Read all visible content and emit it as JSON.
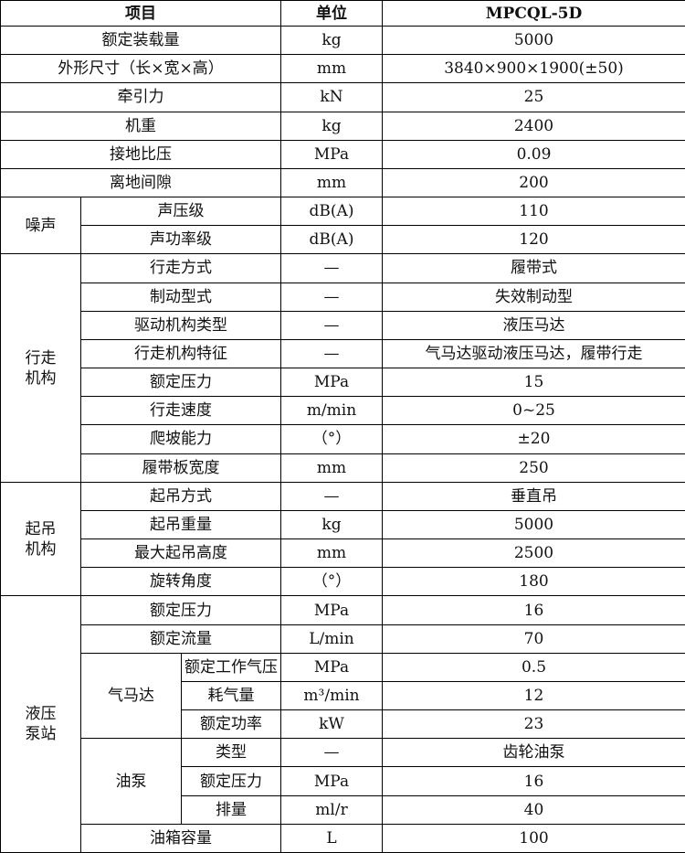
{
  "header": {
    "item": "项目",
    "unit": "单位",
    "value": "MPCQL-5D"
  },
  "rows": [
    {
      "item": "额定装载量",
      "unit": "kg",
      "value": "5000"
    },
    {
      "item": "外形尺寸（长×宽×高）",
      "unit": "mm",
      "value": "3840×900×1900(±50)"
    },
    {
      "item": "牵引力",
      "unit": "kN",
      "value": "25"
    },
    {
      "item": "机重",
      "unit": "kg",
      "value": "2400"
    },
    {
      "item": "接地比压",
      "unit": "MPa",
      "value": "0.09"
    },
    {
      "item": "离地间隙",
      "unit": "mm",
      "value": "200"
    },
    {
      "group": "噪声",
      "rows": [
        {
          "item": "声压级",
          "unit": "dB(A)",
          "value": "110"
        },
        {
          "item": "声功率级",
          "unit": "dB(A)",
          "value": "120"
        }
      ]
    },
    {
      "group": "行走机构",
      "rows": [
        {
          "item": "行走方式",
          "unit": "—",
          "value": "履带式"
        },
        {
          "item": "制动型式",
          "unit": "—",
          "value": "失效制动型"
        },
        {
          "item": "驱动机构类型",
          "unit": "—",
          "value": "液压马达"
        },
        {
          "item": "行走机构特征",
          "unit": "—",
          "value": "气马达驱动液压马达，履带行走"
        },
        {
          "item": "额定压力",
          "unit": "MPa",
          "value": "15"
        },
        {
          "item": "行走速度",
          "unit": "m/min",
          "value": "0~25"
        },
        {
          "item": "爬坡能力",
          "unit": "（°）",
          "value": "±20"
        },
        {
          "item": "履带板宽度",
          "unit": "mm",
          "value": "250"
        }
      ]
    },
    {
      "group": "起吊机构",
      "rows": [
        {
          "item": "起吊方式",
          "unit": "—",
          "value": "垂直吊"
        },
        {
          "item": "起吊重量",
          "unit": "kg",
          "value": "5000"
        },
        {
          "item": "最大起吊高度",
          "unit": "mm",
          "value": "2500"
        },
        {
          "item": "旋转角度",
          "unit": "（°）",
          "value": "180"
        }
      ]
    },
    {
      "group": "液压泵站",
      "rows": [
        {
          "item": "额定压力",
          "unit": "MPa",
          "value": "16"
        },
        {
          "item": "额定流量",
          "unit": "L/min",
          "value": "70"
        },
        {
          "group": "气马达",
          "rows": [
            {
              "item": "额定工作气压",
              "unit": "MPa",
              "value": "0.5"
            },
            {
              "item": "耗气量",
              "unit": "m³/min",
              "value": "12"
            },
            {
              "item": "额定功率",
              "unit": "kW",
              "value": "23"
            }
          ]
        },
        {
          "group": "油泵",
          "rows": [
            {
              "item": "类型",
              "unit": "—",
              "value": "齿轮油泵"
            },
            {
              "item": "额定压力",
              "unit": "MPa",
              "value": "16"
            },
            {
              "item": "排量",
              "unit": "ml/r",
              "value": "40"
            }
          ]
        },
        {
          "item": "油箱容量",
          "unit": "L",
          "value": "100"
        }
      ]
    }
  ]
}
